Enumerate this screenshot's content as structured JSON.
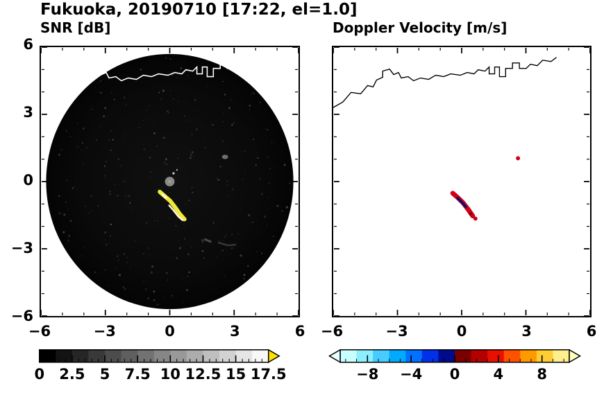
{
  "title": "Fukuoka, 20190710 [17:22, el=1.0]",
  "panels": {
    "left": {
      "title": "SNR [dB]"
    },
    "right": {
      "title": "Doppler Velocity [m/s]"
    }
  },
  "axes": {
    "x_values": [
      -6,
      -3,
      0,
      3,
      6
    ],
    "x_labels": [
      "−6",
      "−3",
      "0",
      "3",
      "6"
    ],
    "y_values": [
      6,
      3,
      0,
      -3,
      -6
    ],
    "y_labels": [
      "6",
      "3",
      "0",
      "−3",
      "−6"
    ]
  },
  "colorbars": {
    "snr": {
      "min": 0,
      "max": 17.5,
      "tick_values": [
        0,
        2.5,
        5,
        7.5,
        10,
        12.5,
        15,
        17.5
      ],
      "tick_labels": [
        "0",
        "2.5",
        "5",
        "7.5",
        "10",
        "12.5",
        "15",
        "17.5"
      ],
      "minor_step": 0.5,
      "segments": 14,
      "gradient_from": "#000000",
      "gradient_to": "#f8f8f8",
      "over_color": "#ffe000"
    },
    "velocity": {
      "min": -10.5,
      "max": 10.5,
      "tick_values": [
        -8,
        -4,
        0,
        4,
        8
      ],
      "tick_labels": [
        "−8",
        "−4",
        "0",
        "4",
        "8"
      ],
      "minor_step": 1,
      "segment_colors": [
        "#c8ffff",
        "#8ceeff",
        "#46ccff",
        "#00aaff",
        "#0072ff",
        "#0031e8",
        "#000b8c",
        "#7a0000",
        "#b40000",
        "#e81000",
        "#ff5200",
        "#ff9900",
        "#ffcc33",
        "#ffee8c"
      ],
      "under_color": "#e6ffff",
      "over_color": "#ffffc0"
    }
  },
  "chart_data": [
    {
      "type": "heatmap",
      "title": "SNR [dB]",
      "xlabel": "",
      "ylabel": "",
      "xlim": [
        -6,
        6
      ],
      "ylim": [
        -6,
        6
      ],
      "x_ticks": [
        -6,
        -3,
        0,
        3,
        6
      ],
      "y_ticks": [
        -6,
        -3,
        0,
        3,
        6
      ],
      "grid": false,
      "legend": "none",
      "colorbar": {
        "orientation": "horizontal",
        "range": [
          0,
          17.5
        ],
        "ticks": [
          0,
          2.5,
          5,
          7.5,
          10,
          12.5,
          15,
          17.5
        ],
        "colormap": "grayscale black to white, yellow over-range arrow"
      },
      "content": {
        "scan_disk": {
          "center": [
            0,
            0
          ],
          "radius": 5.8,
          "background": "near-0 dB noise (black)"
        },
        "radar_site": {
          "position": [
            0,
            0
          ],
          "marker": "gray dome dot"
        },
        "echoes": [
          {
            "shape": "jagged streak",
            "from": [
              -0.45,
              -0.65
            ],
            "to": [
              0.85,
              -1.85
            ],
            "value_dB": "12 to >17.5 (yellow/white)"
          },
          {
            "shape": "speck",
            "at": [
              2.6,
              1.1
            ],
            "value_dB": "about 5 (gray)"
          },
          {
            "shape": "faint streak",
            "at": [
              1.6,
              -2.8
            ],
            "value_dB": "about 2-3 (dark gray)"
          }
        ],
        "coastline": "white coastline with harbor structures across top of disk"
      }
    },
    {
      "type": "heatmap",
      "title": "Doppler Velocity [m/s]",
      "xlabel": "",
      "ylabel": "",
      "xlim": [
        -6,
        6
      ],
      "ylim": [
        -6,
        6
      ],
      "x_ticks": [
        -6,
        -3,
        0,
        3,
        6
      ],
      "y_ticks": [
        -6,
        -3,
        0,
        3,
        6
      ],
      "grid": false,
      "legend": "none",
      "colorbar": {
        "orientation": "horizontal",
        "range": [
          -10.5,
          10.5
        ],
        "ticks": [
          -8,
          -4,
          0,
          4,
          8
        ],
        "colormap": "cyan-blue-navy (negative) to darkred-red-orange-yellow (positive), arrows both ends"
      },
      "content": {
        "echoes": [
          {
            "shape": "jagged streak",
            "from": [
              -0.45,
              -0.65
            ],
            "to": [
              0.85,
              -1.85
            ],
            "values": "positive (red) rim with negative (dark blue) core"
          },
          {
            "shape": "speck",
            "at": [
              2.6,
              1.1
            ],
            "values": "positive (red)"
          }
        ],
        "coastline": "black coastline with harbor structures across top"
      }
    }
  ]
}
